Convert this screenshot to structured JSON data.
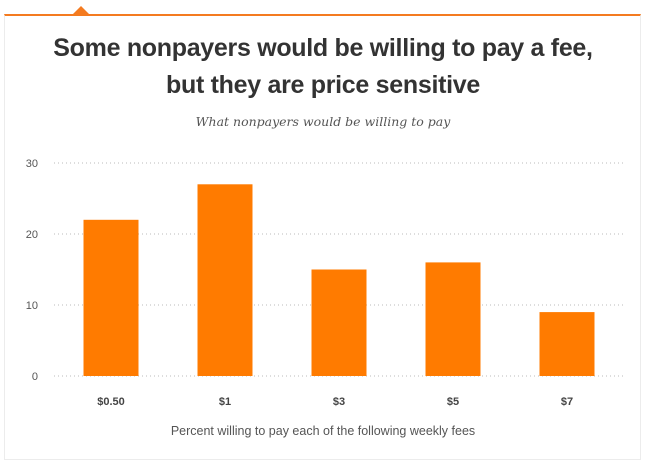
{
  "chart_data": {
    "type": "bar",
    "title": "Some nonpayers would be willing to pay a fee, but they are price sensitive",
    "subtitle": "What nonpayers would be willing to pay",
    "categories": [
      "$0.50",
      "$1",
      "$3",
      "$5",
      "$7"
    ],
    "values": [
      22,
      27,
      15,
      16,
      9
    ],
    "xlabel": "Percent willing to pay each of the following weekly fees",
    "ylabel": "",
    "ylim": [
      0,
      30
    ],
    "yticks": [
      "0",
      "10",
      "20",
      "30"
    ],
    "grid": true,
    "bar_color": "#ff7b00",
    "accent_color": "#f47b20"
  }
}
